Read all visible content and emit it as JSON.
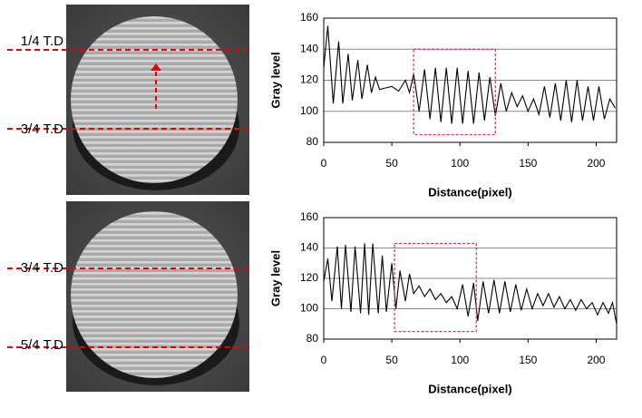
{
  "photos": [
    {
      "labels": [
        "1/4 T.D",
        "3/4 T.D"
      ]
    },
    {
      "labels": [
        "3/4 T.D",
        "5/4 T.D"
      ]
    }
  ],
  "chart_data": [
    {
      "type": "line",
      "x_label": "Distance(pixel)",
      "y_label": "Gray level",
      "xlim": [
        0,
        215
      ],
      "ylim": [
        80,
        160
      ],
      "xticks": [
        0,
        50,
        100,
        150,
        200
      ],
      "yticks": [
        80,
        100,
        120,
        140,
        160
      ],
      "grid": true,
      "series": [
        {
          "color": "#000000",
          "x": [
            0,
            3,
            7,
            11,
            14,
            18,
            21,
            25,
            28,
            32,
            35,
            38,
            41,
            45,
            50,
            55,
            60,
            63,
            66,
            70,
            74,
            78,
            82,
            86,
            90,
            94,
            98,
            102,
            106,
            110,
            114,
            118,
            122,
            126,
            130,
            134,
            138,
            142,
            146,
            150,
            154,
            158,
            162,
            166,
            170,
            174,
            178,
            182,
            186,
            190,
            194,
            198,
            202,
            206,
            210,
            214
          ],
          "values": [
            128,
            155,
            105,
            145,
            105,
            137,
            107,
            133,
            108,
            130,
            112,
            122,
            114,
            115,
            116,
            113,
            120,
            112,
            124,
            100,
            127,
            95,
            128,
            93,
            128,
            92,
            128,
            92,
            126,
            92,
            125,
            94,
            122,
            97,
            118,
            100,
            112,
            103,
            110,
            100,
            108,
            98,
            116,
            96,
            118,
            94,
            120,
            93,
            120,
            94,
            116,
            94,
            116,
            95,
            108,
            102
          ]
        }
      ],
      "highlight_box": {
        "x": [
          66,
          126
        ],
        "y": [
          85,
          140
        ],
        "color": "#e0304a"
      }
    },
    {
      "type": "line",
      "x_label": "Distance(pixel)",
      "y_label": "Gray level",
      "xlim": [
        0,
        215
      ],
      "ylim": [
        80,
        160
      ],
      "xticks": [
        0,
        50,
        100,
        150,
        200
      ],
      "yticks": [
        80,
        100,
        120,
        140,
        160
      ],
      "grid": true,
      "series": [
        {
          "color": "#000000",
          "x": [
            0,
            3,
            6,
            10,
            13,
            16,
            20,
            23,
            27,
            30,
            33,
            36,
            40,
            43,
            46,
            50,
            53,
            56,
            60,
            63,
            66,
            70,
            74,
            78,
            82,
            86,
            90,
            94,
            98,
            102,
            106,
            110,
            113,
            117,
            121,
            125,
            129,
            133,
            137,
            141,
            145,
            149,
            153,
            157,
            161,
            165,
            169,
            173,
            177,
            181,
            185,
            189,
            193,
            197,
            201,
            205,
            209,
            212,
            215
          ],
          "values": [
            118,
            133,
            105,
            141,
            100,
            142,
            98,
            141,
            97,
            143,
            96,
            143,
            97,
            135,
            98,
            130,
            100,
            125,
            105,
            123,
            110,
            115,
            108,
            113,
            106,
            110,
            104,
            108,
            100,
            116,
            95,
            117,
            92,
            118,
            97,
            119,
            97,
            118,
            98,
            116,
            99,
            113,
            100,
            110,
            102,
            110,
            101,
            108,
            100,
            106,
            99,
            106,
            100,
            104,
            96,
            104,
            97,
            104,
            90
          ]
        }
      ],
      "highlight_box": {
        "x": [
          52,
          112
        ],
        "y": [
          85,
          143
        ],
        "color": "#e0304a"
      }
    }
  ]
}
